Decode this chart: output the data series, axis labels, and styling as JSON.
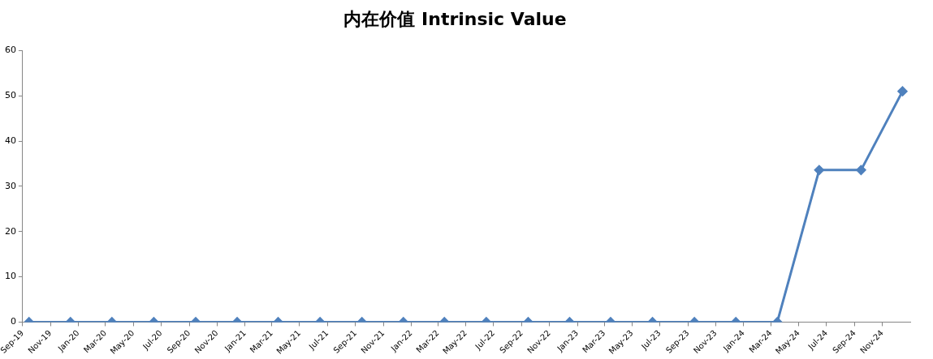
{
  "chart_data": {
    "type": "line",
    "title": "内在价值 Intrinsic Value",
    "x": [
      "2019-09-15",
      "2019-12-15",
      "2020-03-15",
      "2020-06-15",
      "2020-09-15",
      "2020-12-15",
      "2021-03-15",
      "2021-06-15",
      "2021-09-15",
      "2021-12-15",
      "2022-03-15",
      "2022-06-15",
      "2022-09-15",
      "2022-12-15",
      "2023-03-15",
      "2023-06-15",
      "2023-09-15",
      "2023-12-15",
      "2024-03-15",
      "2024-06-15",
      "2024-09-15",
      "2024-12-15"
    ],
    "series": [
      {
        "color": "#4f81bd",
        "values": [
          0,
          0,
          0,
          0,
          0,
          0,
          0,
          0,
          0,
          0,
          0,
          0,
          0,
          0,
          0,
          0,
          0,
          0,
          0,
          33.6,
          33.6,
          51
        ]
      }
    ],
    "xlim": [
      "2019-09-01",
      "2025-01-01"
    ],
    "xticks": [
      {
        "value": "2019-09-01",
        "label": "Sep-19"
      },
      {
        "value": "2019-11-01",
        "label": "Nov-19"
      },
      {
        "value": "2020-01-01",
        "label": "Jan-20"
      },
      {
        "value": "2020-03-01",
        "label": "Mar-20"
      },
      {
        "value": "2020-05-01",
        "label": "May-20"
      },
      {
        "value": "2020-07-01",
        "label": "Jul-20"
      },
      {
        "value": "2020-09-01",
        "label": "Sep-20"
      },
      {
        "value": "2020-11-01",
        "label": "Nov-20"
      },
      {
        "value": "2021-01-01",
        "label": "Jan-21"
      },
      {
        "value": "2021-03-01",
        "label": "Mar-21"
      },
      {
        "value": "2021-05-01",
        "label": "May-21"
      },
      {
        "value": "2021-07-01",
        "label": "Jul-21"
      },
      {
        "value": "2021-09-01",
        "label": "Sep-21"
      },
      {
        "value": "2021-11-01",
        "label": "Nov-21"
      },
      {
        "value": "2022-01-01",
        "label": "Jan-22"
      },
      {
        "value": "2022-03-01",
        "label": "Mar-22"
      },
      {
        "value": "2022-05-01",
        "label": "May-22"
      },
      {
        "value": "2022-07-01",
        "label": "Jul-22"
      },
      {
        "value": "2022-09-01",
        "label": "Sep-22"
      },
      {
        "value": "2022-11-01",
        "label": "Nov-22"
      },
      {
        "value": "2023-01-01",
        "label": "Jan-23"
      },
      {
        "value": "2023-03-01",
        "label": "Mar-23"
      },
      {
        "value": "2023-05-01",
        "label": "May-23"
      },
      {
        "value": "2023-07-01",
        "label": "Jul-23"
      },
      {
        "value": "2023-09-01",
        "label": "Sep-23"
      },
      {
        "value": "2023-11-01",
        "label": "Nov-23"
      },
      {
        "value": "2024-01-01",
        "label": "Jan-24"
      },
      {
        "value": "2024-03-01",
        "label": "Mar-24"
      },
      {
        "value": "2024-05-01",
        "label": "May-24"
      },
      {
        "value": "2024-07-01",
        "label": "Jul-24"
      },
      {
        "value": "2024-09-01",
        "label": "Sep-24"
      },
      {
        "value": "2024-11-01",
        "label": "Nov-24"
      }
    ],
    "ylim": [
      0,
      60
    ],
    "yticks": [
      0,
      10,
      20,
      30,
      40,
      50,
      60
    ],
    "grid": false,
    "legend": false,
    "marker": "diamond",
    "line_style": "solid"
  }
}
